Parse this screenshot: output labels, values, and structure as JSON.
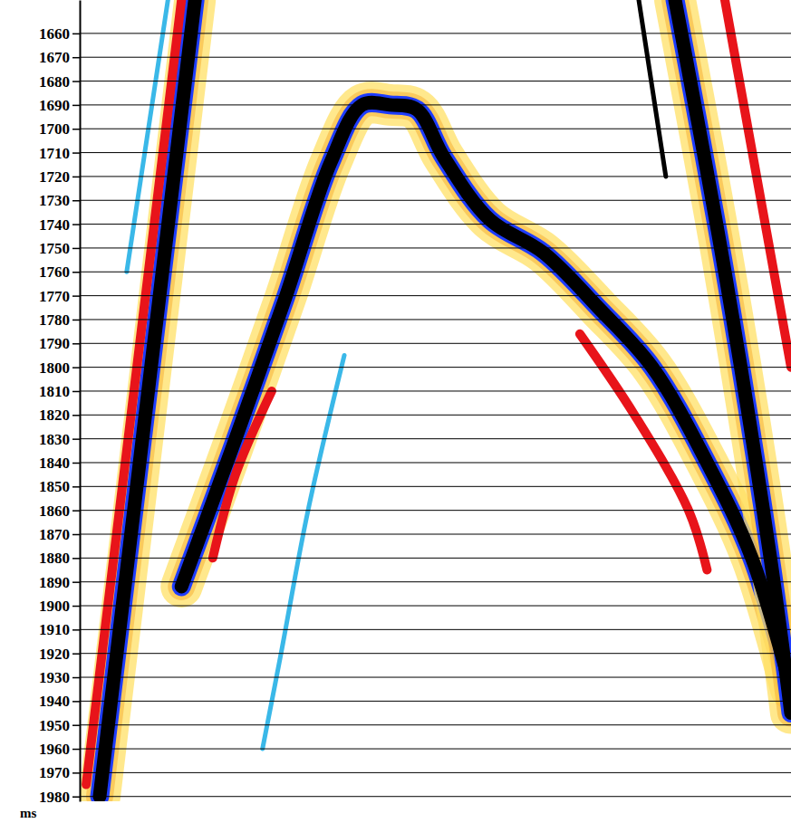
{
  "chart_data": {
    "type": "line",
    "y_label": "ms",
    "ylim": [
      1646,
      1982
    ],
    "yticks": [
      1660,
      1670,
      1680,
      1690,
      1700,
      1710,
      1720,
      1730,
      1740,
      1750,
      1760,
      1770,
      1780,
      1790,
      1800,
      1810,
      1820,
      1830,
      1840,
      1850,
      1860,
      1870,
      1880,
      1890,
      1900,
      1910,
      1920,
      1930,
      1940,
      1950,
      1960,
      1970,
      1980
    ],
    "xlim": [
      0,
      100
    ],
    "grid": true,
    "tick_labels": "y",
    "series": [
      {
        "color": "#3ab8e8",
        "line_style": "thin",
        "x": [
          12.4,
          6.6
        ],
        "values": [
          1646,
          1760
        ]
      },
      {
        "color": "#e8141a",
        "line_style": "medium",
        "x": [
          14.3,
          0.9
        ],
        "values": [
          1646,
          1975
        ]
      },
      {
        "color": "#000000",
        "line_style": "thick",
        "x": [
          16.2,
          2.8
        ],
        "values": [
          1646,
          1980
        ]
      },
      {
        "color": "#e8141a",
        "line_style": "medium",
        "x": [
          27.0,
          21.9,
          18.7
        ],
        "values": [
          1810,
          1845,
          1880
        ]
      },
      {
        "color": "#3ab8e8",
        "line_style": "thin",
        "x": [
          37.2,
          32.1,
          28.3,
          25.7
        ],
        "values": [
          1795,
          1860,
          1920,
          1960
        ]
      },
      {
        "color": "#000000",
        "line_style": "thick",
        "x": [
          14.3,
          21.3,
          28.9,
          35.3,
          39.7,
          43.6,
          47.4,
          51.2,
          57.6,
          65.2,
          72.9,
          80.5,
          88.2,
          94.5,
          100
        ],
        "values": [
          1892,
          1835,
          1771,
          1714,
          1690,
          1690,
          1692,
          1712,
          1738,
          1752,
          1775,
          1800,
          1840,
          1880,
          1935
        ]
      },
      {
        "color": "#e8141a",
        "line_style": "medium",
        "x": [
          70.3,
          78.0,
          85.6,
          88.2
        ],
        "values": [
          1786,
          1820,
          1860,
          1885
        ]
      },
      {
        "color": "#000000",
        "line_style": "thin",
        "x": [
          78.6,
          82.4
        ],
        "values": [
          1646,
          1720
        ]
      },
      {
        "color": "#000000",
        "line_style": "thick",
        "x": [
          83.7,
          90.7,
          97.1,
          100
        ],
        "values": [
          1646,
          1760,
          1880,
          1945
        ]
      },
      {
        "color": "#e8141a",
        "line_style": "medium",
        "x": [
          90.7,
          100
        ],
        "values": [
          1646,
          1800
        ]
      }
    ]
  }
}
